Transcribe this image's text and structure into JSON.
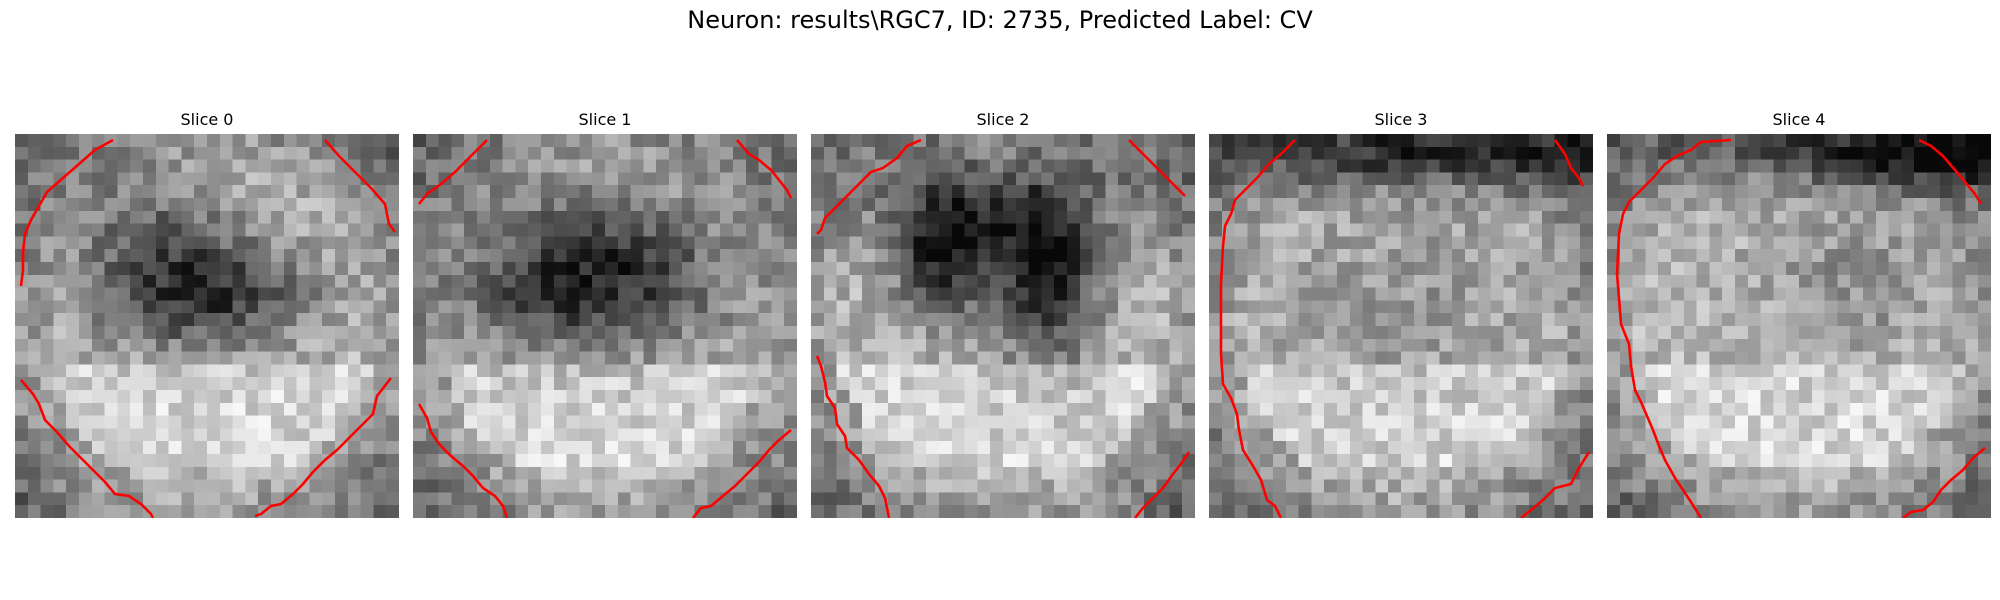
{
  "figure": {
    "title": "Neuron: results\\RGC7, ID: 2735, Predicted Label: CV",
    "colormap": "gray",
    "contour_color": "#ff0000"
  },
  "slices": [
    {
      "label": "Slice 0"
    },
    {
      "label": "Slice 1"
    },
    {
      "label": "Slice 2"
    },
    {
      "label": "Slice 3"
    },
    {
      "label": "Slice 4"
    }
  ]
}
